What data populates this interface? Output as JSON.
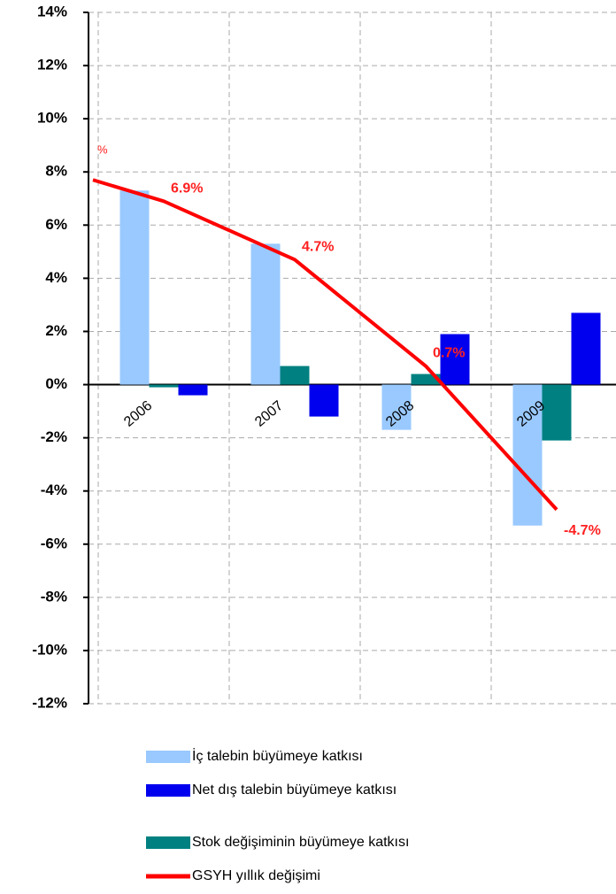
{
  "chart_data": {
    "type": "bar",
    "unit_label": "%",
    "categories": [
      null,
      "2006",
      "2007",
      "2008",
      "2009"
    ],
    "series": [
      {
        "name": "İç talebin büyümeye katkısı",
        "color": "#99c9ff",
        "values": [
          null,
          7.3,
          5.3,
          -1.7,
          -5.3
        ]
      },
      {
        "name": "Net dış talebin büyümeye katkısı",
        "color": "#0000ee",
        "values": [
          null,
          -0.4,
          -1.2,
          1.9,
          2.7
        ]
      },
      {
        "name": "Stok değişiminin büyümeye katkısı",
        "color": "#008080",
        "values": [
          null,
          -0.1,
          0.7,
          0.4,
          -2.1
        ]
      },
      {
        "name": "GSYH yıllık değişimi",
        "type": "line",
        "color": "#ff0000",
        "values": [
          7.7,
          6.9,
          4.7,
          0.7,
          -4.7
        ],
        "value_labels": [
          null,
          "6.9%",
          "4.7%",
          "0.7%",
          "-4.7%"
        ]
      }
    ],
    "ylim": [
      -12,
      14
    ],
    "yticks": [
      {
        "value": -12,
        "label": "-12%"
      },
      {
        "value": -10,
        "label": "-10%"
      },
      {
        "value": -8,
        "label": "-8%"
      },
      {
        "value": -6,
        "label": "-6%"
      },
      {
        "value": -4,
        "label": "-4%"
      },
      {
        "value": -2,
        "label": "-2%"
      },
      {
        "value": 0,
        "label": "0%"
      },
      {
        "value": 2,
        "label": "2%"
      },
      {
        "value": 4,
        "label": "4%"
      },
      {
        "value": 6,
        "label": "6%"
      },
      {
        "value": 8,
        "label": "8%"
      },
      {
        "value": 10,
        "label": "10%"
      },
      {
        "value": 12,
        "label": "12%"
      },
      {
        "value": 14,
        "label": "14%"
      }
    ],
    "grid": true
  }
}
